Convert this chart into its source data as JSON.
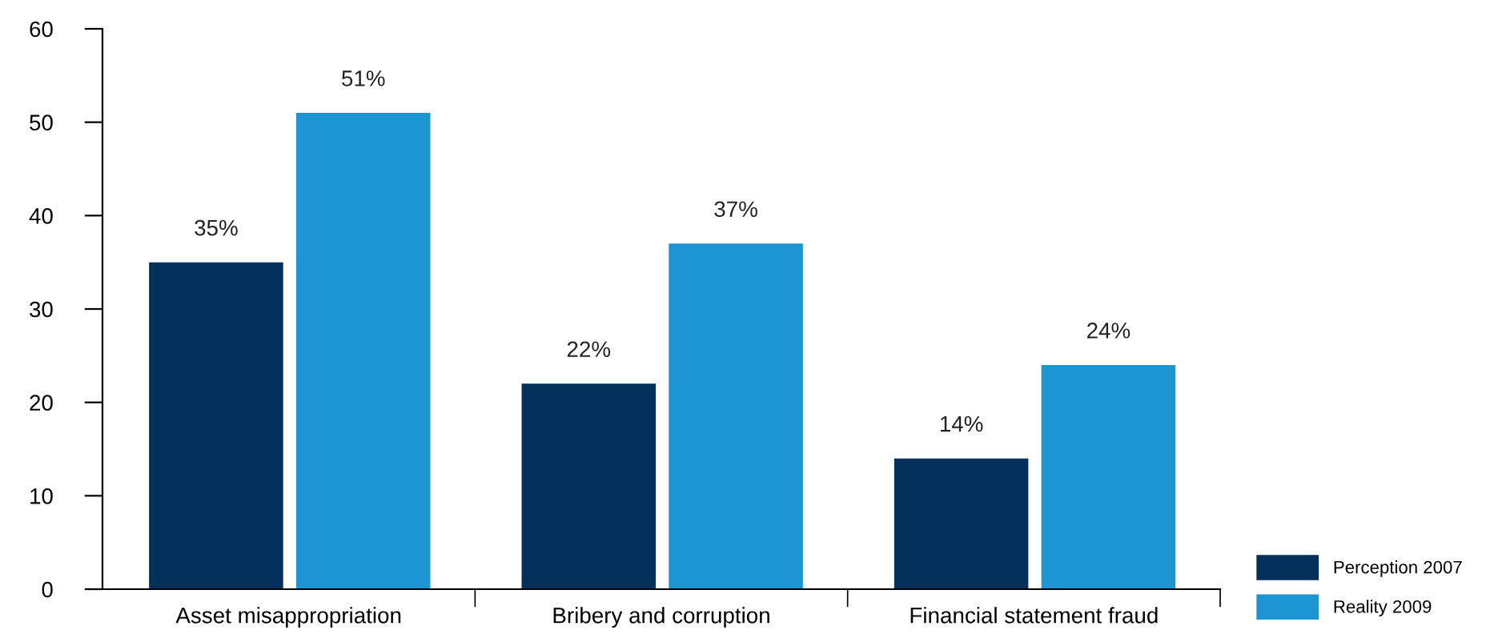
{
  "chart_data": {
    "type": "bar",
    "categories": [
      "Asset misappropriation",
      "Bribery and corruption",
      "Financial statement fraud"
    ],
    "series": [
      {
        "name": "Perception 2007",
        "color": "#02305a",
        "values": [
          35,
          22,
          14
        ],
        "value_labels": [
          "35%",
          "22%",
          "14%"
        ]
      },
      {
        "name": "Reality 2009",
        "color": "#1e95d3",
        "values": [
          51,
          37,
          24
        ],
        "value_labels": [
          "51%",
          "37%",
          "24%"
        ]
      }
    ],
    "ylim": [
      0,
      60
    ],
    "yticks": [
      0,
      10,
      20,
      30,
      40,
      50,
      60
    ],
    "grid": false,
    "legend": "bottom right"
  }
}
